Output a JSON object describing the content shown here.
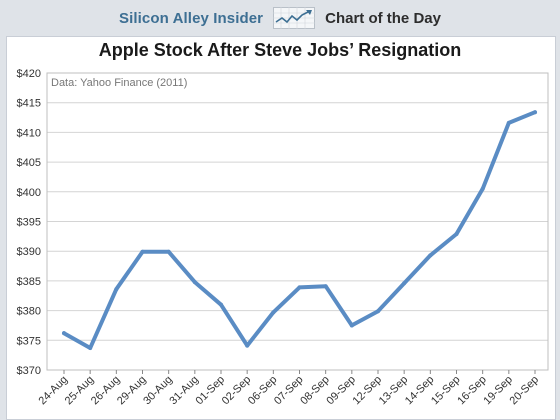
{
  "header": {
    "brand": "Silicon Alley Insider",
    "section": "Chart of the Day",
    "logo_icon": "rising-line-chart-icon"
  },
  "chart_data": {
    "type": "line",
    "title": "Apple Stock After Steve Jobs’ Resignation",
    "source_note": "Data: Yahoo Finance (2011)",
    "xlabel": "",
    "ylabel": "",
    "ylim": [
      370,
      420
    ],
    "ytick_step": 5,
    "ytick_labels": [
      "$370",
      "$375",
      "$380",
      "$385",
      "$390",
      "$395",
      "$400",
      "$405",
      "$410",
      "$415",
      "$420"
    ],
    "grid": true,
    "categories": [
      "24-Aug",
      "25-Aug",
      "26-Aug",
      "29-Aug",
      "30-Aug",
      "31-Aug",
      "01-Sep",
      "02-Sep",
      "06-Sep",
      "07-Sep",
      "08-Sep",
      "09-Sep",
      "12-Sep",
      "13-Sep",
      "14-Sep",
      "15-Sep",
      "16-Sep",
      "19-Sep",
      "20-Sep"
    ],
    "series": [
      {
        "values": [
          376.2,
          373.7,
          383.6,
          389.9,
          389.9,
          384.8,
          381.0,
          374.1,
          379.7,
          383.9,
          384.1,
          377.5,
          379.9,
          384.6,
          389.3,
          392.9,
          400.5,
          411.6,
          413.4
        ],
        "color": "#5a8cc4"
      }
    ]
  }
}
